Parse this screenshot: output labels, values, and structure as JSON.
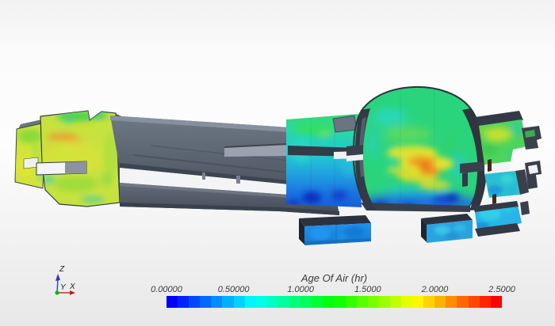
{
  "view": {
    "background_top": "#f2f2f2",
    "background_bottom": "#e8e8e8"
  },
  "scalar_bar": {
    "title": "Age Of Air (hr)",
    "labels": [
      "0.00000",
      "0.50000",
      "1.0000",
      "1.5000",
      "2.0000",
      "2.5000"
    ],
    "colors": [
      "#0000FF",
      "#0023FF",
      "#0047FF",
      "#0069FF",
      "#008DFF",
      "#00B0FF",
      "#00D3FF",
      "#00F6FF",
      "#00FFE5",
      "#00FFC1",
      "#00FF9E",
      "#00FF7B",
      "#00FF58",
      "#00FF35",
      "#00FF11",
      "#11FF00",
      "#35FF00",
      "#58FF00",
      "#7BFF00",
      "#9EFF00",
      "#C1FF00",
      "#E5FF00",
      "#FFF600",
      "#FFD300",
      "#FFB000",
      "#FF8D00",
      "#FF6900",
      "#FF4700",
      "#FF2300",
      "#FF0000"
    ]
  },
  "orientation_axes": {
    "x": {
      "label": "X",
      "color": "#d02828"
    },
    "y": {
      "label": "Y",
      "color": "#18b018"
    },
    "z": {
      "label": "Z",
      "color": "#3040c8"
    }
  },
  "scene": {
    "structure_color": "#5c6672",
    "structure_dark": "#333a45",
    "cut_color": "#f3f4f6",
    "contour_base_green": "#2ad47c",
    "contour_yellow_green": "#c7e23e",
    "contour_blue": "#1b8ce8"
  },
  "chart_data": {
    "type": "heatmap",
    "title": "Age Of Air (hr)",
    "colorbar": {
      "min": 0.0,
      "max": 2.5,
      "tick_labels": [
        "0.00000",
        "0.50000",
        "1.0000",
        "1.5000",
        "2.0000",
        "2.5000"
      ],
      "tick_values": [
        0.0,
        0.5,
        1.0,
        1.5,
        2.0,
        2.5
      ],
      "n_segments": 30,
      "colormap": "blue-to-red-rainbow",
      "orientation": "horizontal",
      "position": "bottom"
    },
    "regions": [
      {
        "name": "left grandstand wall",
        "approx_age_hr": [
          1.2,
          1.8
        ]
      },
      {
        "name": "left wall hot streak",
        "approx_age_hr": 2.0
      },
      {
        "name": "dome upper hall",
        "approx_age_hr": [
          0.9,
          1.4
        ]
      },
      {
        "name": "dome core plume",
        "approx_age_hr": [
          1.8,
          2.2
        ]
      },
      {
        "name": "dome floor layer",
        "approx_age_hr": [
          0.3,
          0.6
        ]
      },
      {
        "name": "lower hall left of dome",
        "approx_age_hr": [
          0.5,
          1.0
        ]
      },
      {
        "name": "lower hall floor swirls",
        "approx_age_hr": [
          0.2,
          0.4
        ]
      },
      {
        "name": "right stepped rooms",
        "approx_age_hr": [
          0.7,
          1.4
        ]
      },
      {
        "name": "supply plenum boxes",
        "approx_age_hr": [
          0.4,
          0.6
        ]
      }
    ]
  }
}
